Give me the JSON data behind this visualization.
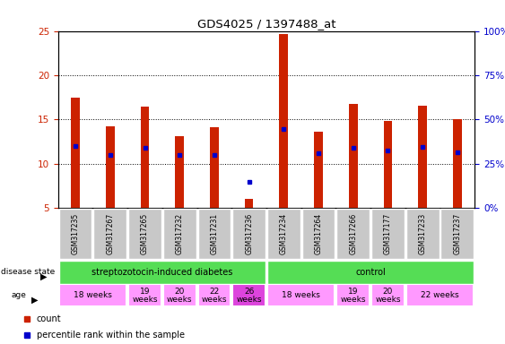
{
  "title": "GDS4025 / 1397488_at",
  "samples": [
    "GSM317235",
    "GSM317267",
    "GSM317265",
    "GSM317232",
    "GSM317231",
    "GSM317236",
    "GSM317234",
    "GSM317264",
    "GSM317266",
    "GSM317177",
    "GSM317233",
    "GSM317237"
  ],
  "counts": [
    17.5,
    14.2,
    16.5,
    13.1,
    14.1,
    6.0,
    24.7,
    13.6,
    16.8,
    14.8,
    16.6,
    15.0
  ],
  "percentile_y": [
    12.0,
    11.0,
    11.8,
    11.0,
    11.0,
    8.0,
    13.9,
    11.2,
    11.8,
    11.5,
    11.9,
    11.3
  ],
  "ymin": 5,
  "ymax": 25,
  "yticks_left": [
    5,
    10,
    15,
    20,
    25
  ],
  "yticks_right": [
    0,
    25,
    50,
    75,
    100
  ],
  "bar_color": "#CC2200",
  "dot_color": "#0000CC",
  "bar_width": 0.25,
  "sample_bg_color": "#C8C8C8",
  "disease_group1_label": "streptozotocin-induced diabetes",
  "disease_group2_label": "control",
  "disease_color": "#55DD55",
  "age_color_normal": "#FF99FF",
  "age_color_dark": "#DD44DD",
  "tick_color_left": "#CC2200",
  "tick_color_right": "#0000CC",
  "age_groups": [
    {
      "label": "18 weeks",
      "start": 0,
      "end": 1,
      "dark": false
    },
    {
      "label": "19\nweeks",
      "start": 2,
      "end": 2,
      "dark": false
    },
    {
      "label": "20\nweeks",
      "start": 3,
      "end": 3,
      "dark": false
    },
    {
      "label": "22\nweeks",
      "start": 4,
      "end": 4,
      "dark": false
    },
    {
      "label": "26\nweeks",
      "start": 5,
      "end": 5,
      "dark": true
    },
    {
      "label": "18 weeks",
      "start": 6,
      "end": 7,
      "dark": false
    },
    {
      "label": "19\nweeks",
      "start": 8,
      "end": 8,
      "dark": false
    },
    {
      "label": "20\nweeks",
      "start": 9,
      "end": 9,
      "dark": false
    },
    {
      "label": "22 weeks",
      "start": 10,
      "end": 11,
      "dark": false
    }
  ]
}
